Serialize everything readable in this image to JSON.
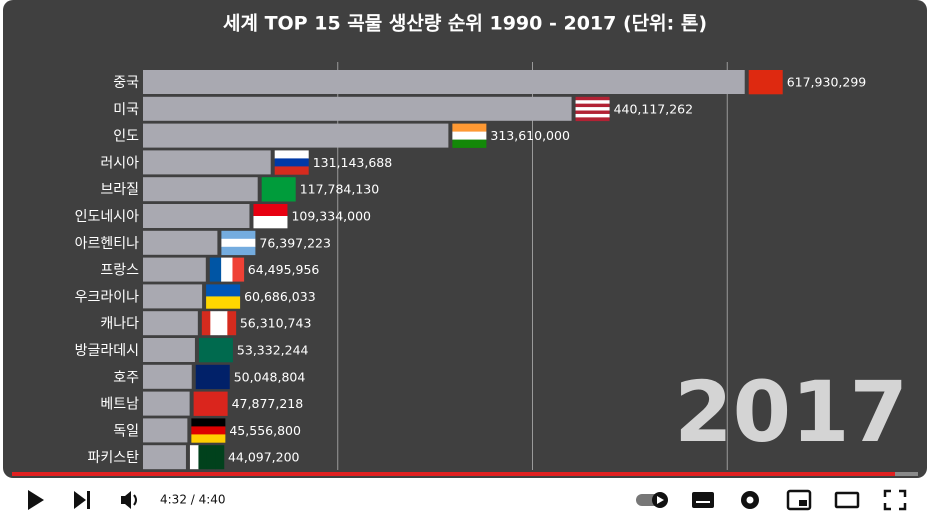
{
  "chart_data": {
    "type": "bar",
    "orientation": "horizontal",
    "title": "세계 TOP 15 곡물 생산량 순위 1990 - 2017 (단위: 톤)",
    "categories": [
      "중국",
      "미국",
      "인도",
      "러시아",
      "브라질",
      "인도네시아",
      "아르헨티나",
      "프랑스",
      "우크라이나",
      "캐나다",
      "방글라데시",
      "호주",
      "베트남",
      "독일",
      "파키스탄"
    ],
    "values": [
      617930299,
      440117262,
      313610000,
      131143688,
      117784130,
      109334000,
      76397223,
      64495956,
      60686033,
      56310743,
      53332244,
      50048804,
      47877218,
      45556800,
      44097200
    ],
    "value_labels": [
      "617,930,299",
      "440,117,262",
      "313,610,000",
      "131,143,688",
      "117,784,130",
      "109,334,000",
      "76,397,223",
      "64,495,956",
      "60,686,033",
      "56,310,743",
      "53,332,244",
      "50,048,804",
      "47,877,218",
      "45,556,800",
      "44,097,200"
    ],
    "color": "#a9a9b1",
    "xlim": [
      0,
      800000000
    ],
    "xticks": [
      200000000,
      400000000,
      600000000
    ],
    "grid": true,
    "annotation": "2017"
  },
  "player": {
    "time": "4:32 / 4:40"
  }
}
